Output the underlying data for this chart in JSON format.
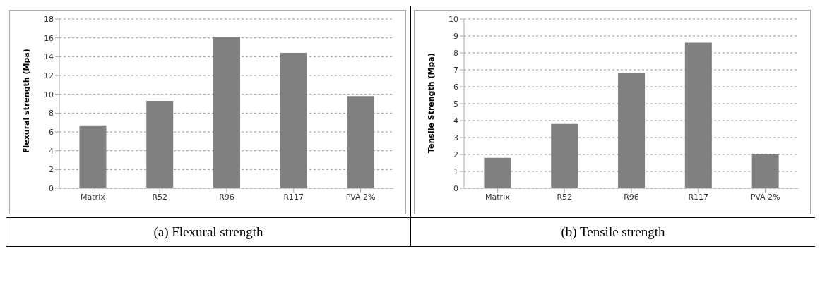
{
  "chart_data": [
    {
      "type": "bar",
      "title": "(a)  Flexural strength",
      "ylabel": "Flexural strength (Mpa)",
      "categories": [
        "Matrix",
        "R52",
        "R96",
        "R117",
        "PVA 2%"
      ],
      "values": [
        6.7,
        9.3,
        16.1,
        14.4,
        9.8
      ],
      "color": "#808080",
      "ylim": [
        0,
        18
      ],
      "yticks": [
        0,
        2,
        4,
        6,
        8,
        10,
        12,
        14,
        16,
        18
      ],
      "grid": "y"
    },
    {
      "type": "bar",
      "title": "(b)  Tensile strength",
      "ylabel": "Tensile Strength (Mpa)",
      "categories": [
        "Matrix",
        "R52",
        "R96",
        "R117",
        "PVA 2%"
      ],
      "values": [
        1.8,
        3.8,
        6.8,
        8.6,
        2.0
      ],
      "color": "#808080",
      "ylim": [
        0,
        10
      ],
      "yticks": [
        0,
        1,
        2,
        3,
        4,
        5,
        6,
        7,
        8,
        9,
        10
      ],
      "grid": "y"
    }
  ]
}
